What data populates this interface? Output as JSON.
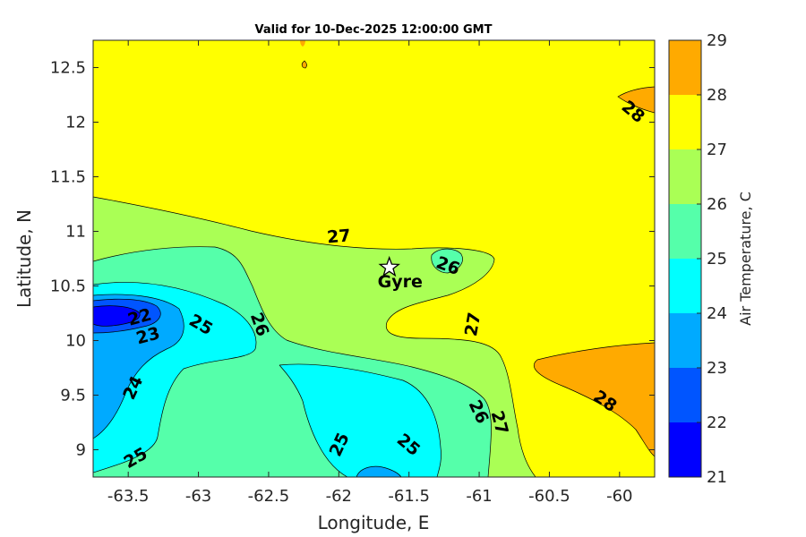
{
  "chart_data": {
    "type": "contour",
    "title": "Valid for 10-Dec-2025 12:00:00 GMT",
    "xlabel": "Longitude, E",
    "ylabel": "Latitude, N",
    "colorbar_label": "Air Temperature, C",
    "xlim": [
      -63.75,
      -59.75
    ],
    "ylim": [
      8.75,
      12.75
    ],
    "x_ticks": [
      -63.5,
      -63,
      -62.5,
      -62,
      -61.5,
      -61,
      -60.5,
      -60
    ],
    "x_tick_labels": [
      "-63.5",
      "-63",
      "-62.5",
      "-62",
      "-61.5",
      "-61",
      "-60.5",
      "-60"
    ],
    "y_ticks": [
      9,
      9.5,
      10,
      10.5,
      11,
      11.5,
      12,
      12.5
    ],
    "y_tick_labels": [
      "9",
      "9.5",
      "10",
      "10.5",
      "11",
      "11.5",
      "12",
      "12.5"
    ],
    "color_levels": [
      21,
      22,
      23,
      24,
      25,
      26,
      27,
      28,
      29
    ],
    "color_level_labels": [
      "21",
      "22",
      "23",
      "24",
      "25",
      "26",
      "27",
      "28",
      "29"
    ],
    "level_colors": [
      "#0000ff",
      "#0055ff",
      "#00aaff",
      "#00ffff",
      "#55ffaa",
      "#aaff55",
      "#ffff00",
      "#ffaa00",
      "#ff5500"
    ],
    "contour_labels": [
      {
        "text": "27",
        "lon": -62.0,
        "lat": 10.96
      },
      {
        "text": "26",
        "lon": -61.22,
        "lat": 10.69
      },
      {
        "text": "27",
        "lon": -61.05,
        "lat": 10.15
      },
      {
        "text": "25",
        "lon": -62.98,
        "lat": 10.15
      },
      {
        "text": "26",
        "lon": -62.56,
        "lat": 10.15
      },
      {
        "text": "22",
        "lon": -63.42,
        "lat": 10.22
      },
      {
        "text": "23",
        "lon": -63.36,
        "lat": 10.05
      },
      {
        "text": "24",
        "lon": -63.47,
        "lat": 9.57
      },
      {
        "text": "25",
        "lon": -63.45,
        "lat": 8.93
      },
      {
        "text": "25",
        "lon": -62.0,
        "lat": 9.05
      },
      {
        "text": "25",
        "lon": -61.5,
        "lat": 9.05
      },
      {
        "text": "26",
        "lon": -61.0,
        "lat": 9.35
      },
      {
        "text": "27",
        "lon": -60.85,
        "lat": 9.25
      },
      {
        "text": "28",
        "lon": -60.1,
        "lat": 9.45
      },
      {
        "text": "28",
        "lon": -59.9,
        "lat": 12.1
      }
    ],
    "site": {
      "name": "Gyre",
      "lon": -61.64,
      "lat": 10.67
    }
  }
}
